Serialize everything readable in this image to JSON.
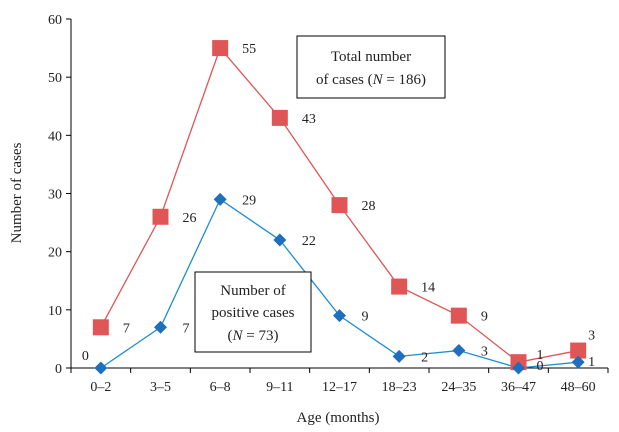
{
  "chart_data": {
    "type": "line",
    "title": "",
    "xlabel": "Age (months)",
    "ylabel": "Number of cases",
    "ylim": [
      0,
      60
    ],
    "yticks": [
      0,
      10,
      20,
      30,
      40,
      50,
      60
    ],
    "categories": [
      "0–2",
      "3–5",
      "6–8",
      "9–11",
      "12–17",
      "18–23",
      "24–35",
      "36–47",
      "48–60"
    ],
    "grid": false,
    "series": [
      {
        "name": "Total number of cases (N = 186)",
        "label_lines": [
          "Total number",
          "of cases (",
          "N",
          " = 186)"
        ],
        "color": "#e05555",
        "line_color": "#e05555",
        "marker": "square",
        "values": [
          7,
          26,
          55,
          43,
          28,
          14,
          9,
          1,
          3
        ]
      },
      {
        "name": "Number of positive cases (N = 73)",
        "label_lines": [
          "Number of",
          "positive cases",
          "(",
          "N",
          " = 73)"
        ],
        "color": "#1f6fbf",
        "line_color": "#1f8fcf",
        "marker": "diamond",
        "values": [
          0,
          7,
          29,
          22,
          9,
          2,
          3,
          0,
          1
        ]
      }
    ]
  }
}
